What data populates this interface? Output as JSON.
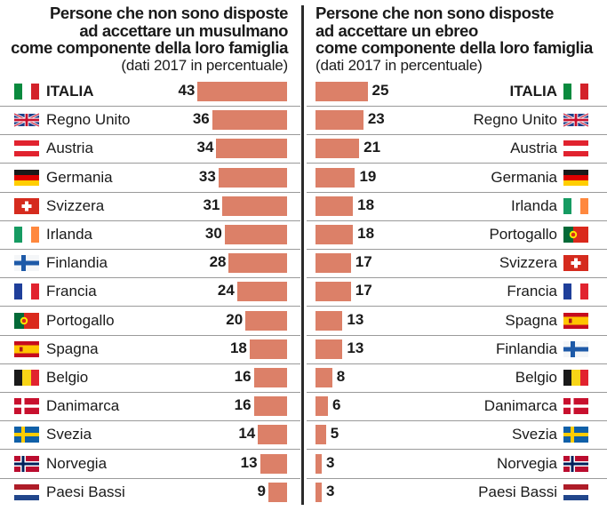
{
  "chart_data": [
    {
      "type": "bar",
      "title_lines": [
        "Persone che non sono disposte",
        "ad accettare un musulmano",
        "come componente della loro famiglia"
      ],
      "subtitle": "(dati 2017 in percentuale)",
      "categories": [
        "ITALIA",
        "Regno Unito",
        "Austria",
        "Germania",
        "Svizzera",
        "Irlanda",
        "Finlandia",
        "Francia",
        "Portogallo",
        "Spagna",
        "Belgio",
        "Danimarca",
        "Svezia",
        "Norvegia",
        "Paesi Bassi"
      ],
      "values": [
        43,
        36,
        34,
        33,
        31,
        30,
        28,
        24,
        20,
        18,
        16,
        16,
        14,
        13,
        9
      ],
      "flags": [
        "italy-flag",
        "uk-flag",
        "austria-flag",
        "germany-flag",
        "switzerland-flag",
        "ireland-flag",
        "finland-flag",
        "france-flag",
        "portugal-flag",
        "spain-flag",
        "belgium-flag",
        "denmark-flag",
        "sweden-flag",
        "norway-flag",
        "netherlands-flag"
      ],
      "orientation": "horizontal, bars aligned right"
    },
    {
      "type": "bar",
      "title_lines": [
        "Persone che non sono disposte",
        "ad accettare un ebreo",
        "come componente della loro famiglia"
      ],
      "subtitle": "(dati 2017 in percentuale)",
      "categories": [
        "ITALIA",
        "Regno Unito",
        "Austria",
        "Germania",
        "Irlanda",
        "Portogallo",
        "Svizzera",
        "Francia",
        "Spagna",
        "Finlandia",
        "Belgio",
        "Danimarca",
        "Svezia",
        "Norvegia",
        "Paesi Bassi"
      ],
      "values": [
        25,
        23,
        21,
        19,
        18,
        18,
        17,
        17,
        13,
        13,
        8,
        6,
        5,
        3,
        3
      ],
      "flags": [
        "italy-flag",
        "uk-flag",
        "austria-flag",
        "germany-flag",
        "ireland-flag",
        "portugal-flag",
        "switzerland-flag",
        "france-flag",
        "spain-flag",
        "finland-flag",
        "belgium-flag",
        "denmark-flag",
        "sweden-flag",
        "norway-flag",
        "netherlands-flag"
      ],
      "orientation": "horizontal, bars aligned left"
    }
  ],
  "colors": {
    "bar": "#dc8068",
    "divider": "#2b2b2b",
    "row_rule": "#9a9a9a"
  }
}
